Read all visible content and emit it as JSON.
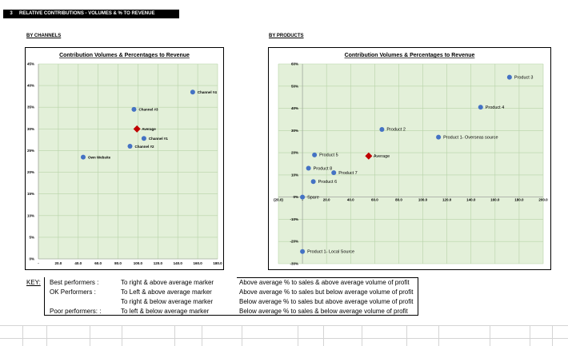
{
  "section": {
    "number": "3",
    "title": "RELATIVE CONTRIBUTIONS - VOLUMES & % TO REVENUE"
  },
  "by_channels_label": "BY CHANNELS",
  "by_products_label": "BY PRODUCTS",
  "chart_data": [
    {
      "type": "scatter",
      "title": "Contribution Volumes & Percentages to Revenue",
      "xlim": [
        0,
        180
      ],
      "ylim": [
        0,
        45
      ],
      "x_ticks": [
        "-",
        "20.0",
        "40.0",
        "60.0",
        "80.0",
        "100.0",
        "120.0",
        "140.0",
        "160.0",
        "180.0"
      ],
      "y_ticks": [
        "0%",
        "5%",
        "10%",
        "15%",
        "20%",
        "25%",
        "30%",
        "35%",
        "40%",
        "45%"
      ],
      "grid": true,
      "points": [
        {
          "label": "Own Website",
          "x": 45,
          "y": 23.5,
          "marker": "circle"
        },
        {
          "label": "Channel #3",
          "x": 96,
          "y": 34.5,
          "marker": "circle"
        },
        {
          "label": "Average",
          "x": 99,
          "y": 30,
          "marker": "diamond"
        },
        {
          "label": "Channel #1",
          "x": 106,
          "y": 27.8,
          "marker": "circle"
        },
        {
          "label": "Channel #2",
          "x": 92,
          "y": 26,
          "marker": "circle"
        },
        {
          "label": "Channel #4",
          "x": 155,
          "y": 38.5,
          "marker": "circle"
        }
      ]
    },
    {
      "type": "scatter",
      "title": "Contribution Volumes & Percentages to Revenue",
      "xlim": [
        -20,
        200
      ],
      "ylim": [
        -30,
        60
      ],
      "x_ticks": [
        "(20.0)",
        "-",
        "20.0",
        "40.0",
        "60.0",
        "80.0",
        "100.0",
        "120.0",
        "140.0",
        "160.0",
        "180.0",
        "200.0"
      ],
      "y_ticks": [
        "-30%",
        "-20%",
        "-10%",
        "0%",
        "10%",
        "20%",
        "30%",
        "40%",
        "50%",
        "60%"
      ],
      "grid": true,
      "points": [
        {
          "label": "Product 3",
          "x": 172,
          "y": 54,
          "marker": "circle"
        },
        {
          "label": "Product 4",
          "x": 148,
          "y": 40.5,
          "marker": "circle"
        },
        {
          "label": "Product 2",
          "x": 66,
          "y": 30.5,
          "marker": "circle"
        },
        {
          "label": "Product 1- Overseas source",
          "x": 113,
          "y": 27,
          "marker": "circle"
        },
        {
          "label": "Product 5",
          "x": 10,
          "y": 19,
          "marker": "circle"
        },
        {
          "label": "Average",
          "x": 55,
          "y": 18.5,
          "marker": "diamond"
        },
        {
          "label": "Product 8",
          "x": 5,
          "y": 13,
          "marker": "circle"
        },
        {
          "label": "Product 7",
          "x": 26,
          "y": 11,
          "marker": "circle"
        },
        {
          "label": "Product 6",
          "x": 9,
          "y": 7,
          "marker": "circle"
        },
        {
          "label": "Spare",
          "x": 0,
          "y": 0,
          "marker": "circle"
        },
        {
          "label": "Product 1- Local Source",
          "x": 0,
          "y": -24.5,
          "marker": "circle"
        }
      ]
    }
  ],
  "key": {
    "label": "KEY:",
    "rows": [
      {
        "category": "Best performers :",
        "position": "To right & above average marker",
        "description": "Above average % to sales & above average volume of profit"
      },
      {
        "category": "OK Performers :",
        "position": "To Left & above average marker",
        "description": "Above average % to sales but below average volume of profit"
      },
      {
        "category": "",
        "position": "To right & below average marker",
        "description": "Below average % to sales but above average volume of profit"
      },
      {
        "category": "Poor performers: :",
        "position": "To left & below average marker",
        "description": "Below average % to sales & below average volume of profit"
      }
    ]
  },
  "colors": {
    "plot_bg": "#e3f0d9",
    "point": "#4472c4",
    "average": "#c00000",
    "gridline": "#b7d3a8"
  }
}
